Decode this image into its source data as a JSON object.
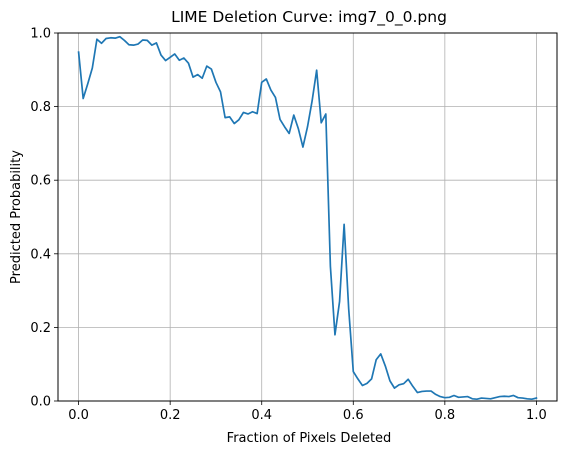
{
  "chart_data": {
    "type": "line",
    "title": "LIME Deletion Curve: img7_0_0.png",
    "xlabel": "Fraction of Pixels Deleted",
    "ylabel": "Predicted Probability",
    "xlim": [
      -0.045,
      1.045
    ],
    "ylim": [
      0,
      1
    ],
    "xticks": [
      0.0,
      0.2,
      0.4,
      0.6,
      0.8,
      1.0
    ],
    "xtick_labels": [
      "0.0",
      "0.2",
      "0.4",
      "0.6",
      "0.8",
      "1.0"
    ],
    "yticks": [
      0.0,
      0.2,
      0.4,
      0.6,
      0.8,
      1.0
    ],
    "ytick_labels": [
      "0.0",
      "0.2",
      "0.4",
      "0.6",
      "0.8",
      "1.0"
    ],
    "grid": true,
    "line_color": "#1f77b4",
    "series": [
      {
        "x": [
          0.0,
          0.01,
          0.02,
          0.03,
          0.04,
          0.05,
          0.06,
          0.07,
          0.08,
          0.09,
          0.1,
          0.11,
          0.12,
          0.13,
          0.14,
          0.15,
          0.16,
          0.17,
          0.18,
          0.19,
          0.2,
          0.21,
          0.22,
          0.23,
          0.24,
          0.25,
          0.26,
          0.27,
          0.28,
          0.29,
          0.3,
          0.31,
          0.32,
          0.33,
          0.34,
          0.35,
          0.36,
          0.37,
          0.38,
          0.39,
          0.4,
          0.41,
          0.42,
          0.43,
          0.44,
          0.45,
          0.46,
          0.47,
          0.48,
          0.49,
          0.5,
          0.51,
          0.52,
          0.53,
          0.54,
          0.55,
          0.56,
          0.57,
          0.58,
          0.59,
          0.6,
          0.61,
          0.62,
          0.63,
          0.64,
          0.65,
          0.66,
          0.67,
          0.68,
          0.69,
          0.7,
          0.71,
          0.72,
          0.73,
          0.74,
          0.75,
          0.76,
          0.77,
          0.78,
          0.79,
          0.8,
          0.81,
          0.82,
          0.83,
          0.84,
          0.85,
          0.86,
          0.87,
          0.88,
          0.89,
          0.9,
          0.91,
          0.92,
          0.93,
          0.94,
          0.95,
          0.96,
          0.97,
          0.98,
          0.99,
          1.0
        ],
        "values": [
          0.948,
          0.822,
          0.862,
          0.905,
          0.983,
          0.972,
          0.985,
          0.987,
          0.986,
          0.99,
          0.98,
          0.968,
          0.967,
          0.97,
          0.981,
          0.98,
          0.967,
          0.973,
          0.94,
          0.925,
          0.934,
          0.943,
          0.926,
          0.932,
          0.918,
          0.88,
          0.887,
          0.877,
          0.91,
          0.902,
          0.866,
          0.84,
          0.77,
          0.772,
          0.754,
          0.764,
          0.784,
          0.78,
          0.786,
          0.781,
          0.866,
          0.875,
          0.845,
          0.825,
          0.765,
          0.745,
          0.727,
          0.777,
          0.74,
          0.69,
          0.745,
          0.815,
          0.899,
          0.756,
          0.78,
          0.366,
          0.18,
          0.27,
          0.48,
          0.25,
          0.08,
          0.06,
          0.042,
          0.048,
          0.06,
          0.112,
          0.128,
          0.095,
          0.055,
          0.035,
          0.044,
          0.047,
          0.059,
          0.04,
          0.023,
          0.026,
          0.027,
          0.027,
          0.018,
          0.012,
          0.009,
          0.01,
          0.015,
          0.01,
          0.011,
          0.012,
          0.006,
          0.005,
          0.008,
          0.007,
          0.006,
          0.009,
          0.012,
          0.013,
          0.012,
          0.015,
          0.009,
          0.008,
          0.006,
          0.005,
          0.008
        ]
      }
    ]
  }
}
